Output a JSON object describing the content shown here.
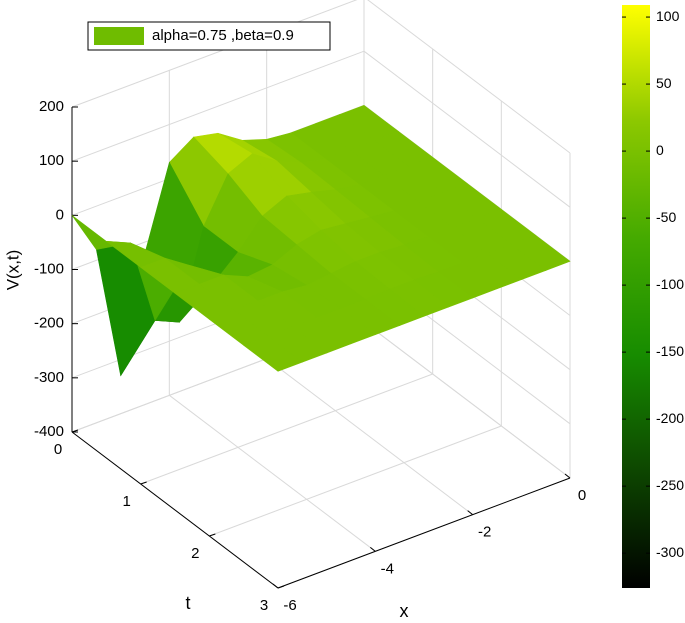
{
  "chart_data": {
    "type": "surface",
    "zlabel": "V(x,t)",
    "xlabel": "x",
    "ylabel": "t",
    "legend": "alpha=0.75 ,beta=0.9",
    "legend_color": "#6fbc00",
    "x": [
      -6,
      -5.5,
      -5,
      -4.5,
      -4,
      -3.5,
      -3,
      -2.5,
      -2,
      -1.5,
      -1,
      -0.5,
      0
    ],
    "t": [
      0,
      0.5,
      1,
      1.5,
      2,
      2.5,
      3
    ],
    "z": [
      [
        0,
        -80,
        -330,
        -120,
        30,
        60,
        50,
        20,
        5,
        0,
        0,
        0,
        0
      ],
      [
        0,
        -20,
        -180,
        -200,
        -40,
        40,
        60,
        30,
        10,
        0,
        0,
        0,
        0
      ],
      [
        0,
        0,
        -30,
        -80,
        -40,
        10,
        30,
        20,
        8,
        0,
        0,
        0,
        0
      ],
      [
        0,
        0,
        0,
        -20,
        -15,
        5,
        15,
        10,
        5,
        0,
        0,
        0,
        0
      ],
      [
        0,
        0,
        0,
        0,
        -5,
        0,
        5,
        5,
        2,
        0,
        0,
        0,
        0
      ],
      [
        0,
        0,
        0,
        0,
        0,
        0,
        2,
        2,
        0,
        0,
        0,
        0,
        0
      ],
      [
        0,
        0,
        0,
        0,
        0,
        0,
        0,
        0,
        0,
        0,
        0,
        0,
        0
      ]
    ],
    "xlim": [
      -6,
      0
    ],
    "xticks": [
      -6,
      -4,
      -2,
      0
    ],
    "tlim": [
      0,
      3
    ],
    "tticks": [
      0,
      1,
      2,
      3
    ],
    "zlim": [
      -400,
      200
    ],
    "zticks": [
      -400,
      -300,
      -200,
      -100,
      0,
      100,
      200
    ],
    "clim": [
      -326,
      109
    ],
    "cticks": [
      -300,
      -250,
      -200,
      -150,
      -100,
      -50,
      0,
      50,
      100
    ],
    "colormap": [
      "#000000",
      "#0d4600",
      "#178c00",
      "#45aa00",
      "#8cc800",
      "#ffff00"
    ],
    "grid": true
  }
}
